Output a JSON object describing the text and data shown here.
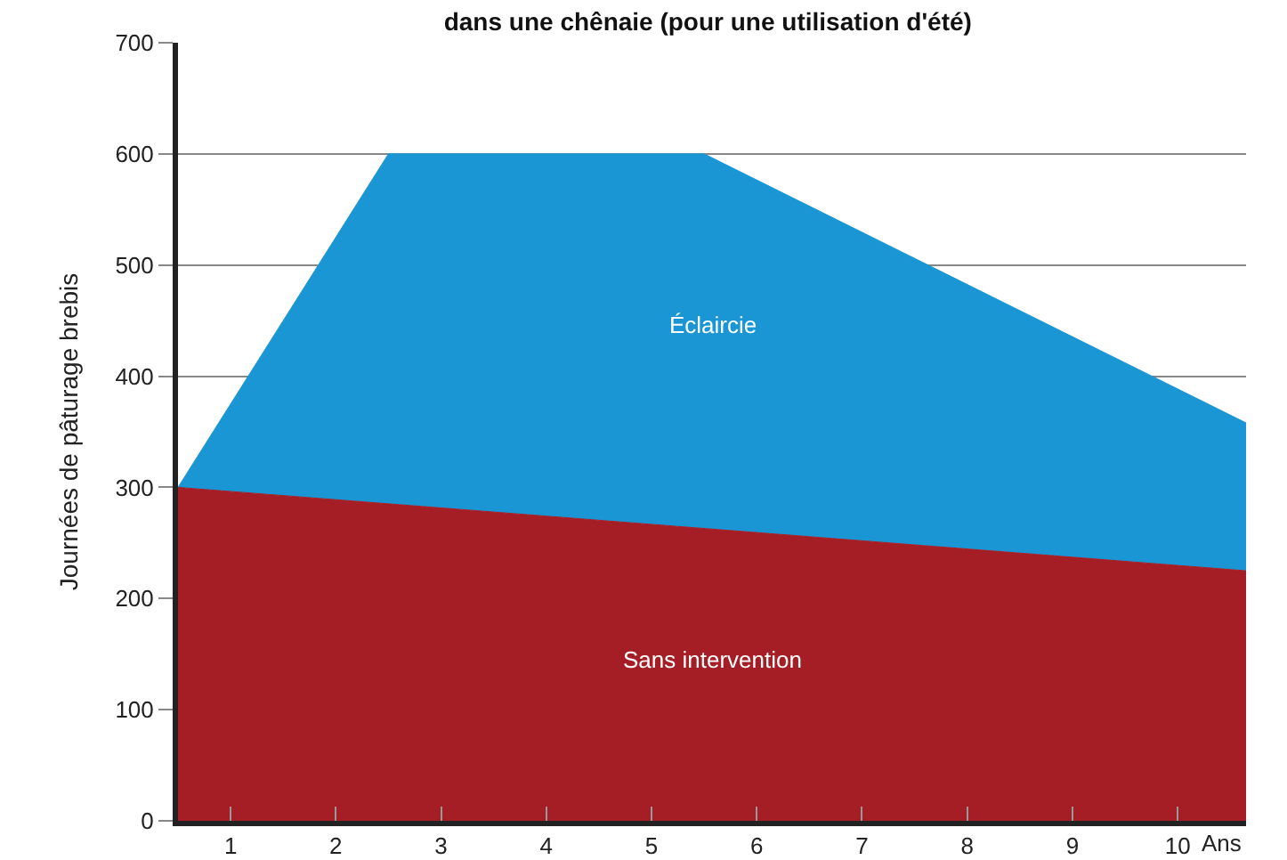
{
  "chart_data": {
    "type": "area",
    "title": "dans une chênaie (pour une utilisation d'été)",
    "xlabel": "Ans",
    "ylabel": "Journées de pâturage brebis",
    "xlim": [
      0.5,
      10.65
    ],
    "xticks": [
      1,
      2,
      3,
      4,
      5,
      6,
      7,
      8,
      9,
      10
    ],
    "ylim": [
      0,
      700
    ],
    "yticks": [
      0,
      100,
      200,
      300,
      400,
      500,
      600,
      700
    ],
    "grid": "y",
    "legend": false,
    "series": [
      {
        "name": "Sans intervention",
        "color": "#a61e25",
        "x": [
          0.5,
          10.65
        ],
        "values": [
          300,
          225
        ]
      },
      {
        "name": "Éclaircie",
        "color": "#1a96d4",
        "x": [
          0.5,
          2.5,
          5.5,
          10.65
        ],
        "values": [
          300,
          600,
          600,
          358
        ]
      }
    ]
  }
}
